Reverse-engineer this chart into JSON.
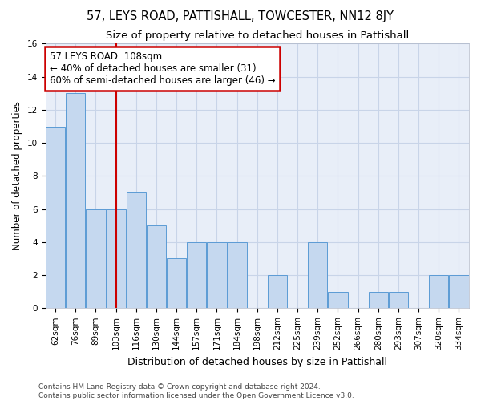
{
  "title": "57, LEYS ROAD, PATTISHALL, TOWCESTER, NN12 8JY",
  "subtitle": "Size of property relative to detached houses in Pattishall",
  "xlabel": "Distribution of detached houses by size in Pattishall",
  "ylabel": "Number of detached properties",
  "categories": [
    "62sqm",
    "76sqm",
    "89sqm",
    "103sqm",
    "116sqm",
    "130sqm",
    "144sqm",
    "157sqm",
    "171sqm",
    "184sqm",
    "198sqm",
    "212sqm",
    "225sqm",
    "239sqm",
    "252sqm",
    "266sqm",
    "280sqm",
    "293sqm",
    "307sqm",
    "320sqm",
    "334sqm"
  ],
  "values": [
    11,
    13,
    6,
    6,
    7,
    5,
    3,
    4,
    4,
    4,
    0,
    2,
    0,
    4,
    1,
    0,
    1,
    1,
    0,
    2,
    2
  ],
  "bar_color": "#c5d8ef",
  "bar_edge_color": "#5b9bd5",
  "vline_color": "#cc0000",
  "vline_x": 3.0,
  "annotation_text": "57 LEYS ROAD: 108sqm\n← 40% of detached houses are smaller (31)\n60% of semi-detached houses are larger (46) →",
  "annotation_box_color": "#ffffff",
  "annotation_box_edge_color": "#cc0000",
  "ylim": [
    0,
    16
  ],
  "yticks": [
    0,
    2,
    4,
    6,
    8,
    10,
    12,
    14,
    16
  ],
  "grid_color": "#c8d4e8",
  "background_color": "#e8eef8",
  "footer": "Contains HM Land Registry data © Crown copyright and database right 2024.\nContains public sector information licensed under the Open Government Licence v3.0.",
  "title_fontsize": 10.5,
  "subtitle_fontsize": 9.5,
  "xlabel_fontsize": 9,
  "ylabel_fontsize": 8.5,
  "tick_fontsize": 7.5,
  "footer_fontsize": 6.5,
  "annot_fontsize": 8.5
}
